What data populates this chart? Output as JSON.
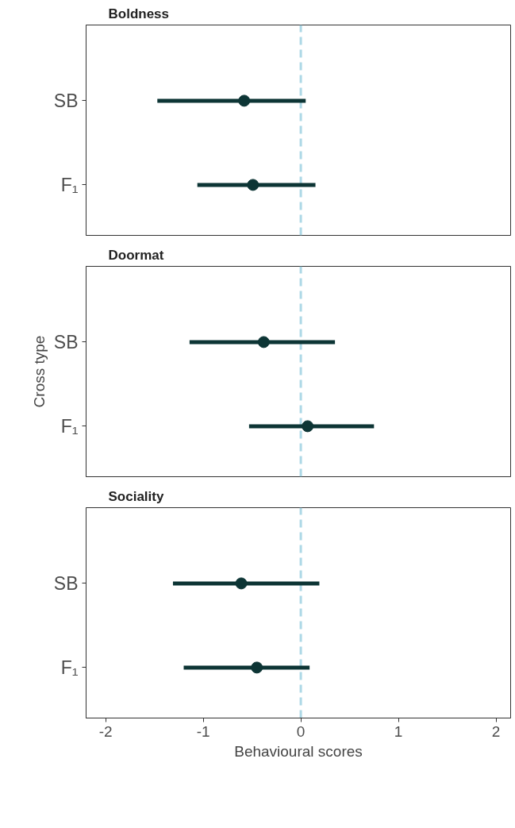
{
  "chart_data": [
    {
      "type": "scatter",
      "orientation": "horizontal",
      "title": "Boldness",
      "categories": [
        "SB",
        "F₁"
      ],
      "xlim": [
        -2.2,
        2.15
      ],
      "xticks": [
        -2,
        -1,
        0,
        1,
        2
      ],
      "tick_labels": "y",
      "marker": "circle",
      "ref_lines": [
        {
          "axis": "x",
          "value": 0,
          "color": "#add8e6",
          "line_style": "dashed"
        }
      ],
      "series": [
        {
          "color": "#0d3535",
          "values": [
            -0.58,
            -0.49
          ],
          "errors": [
            [
              -1.47,
              0.05
            ],
            [
              -1.06,
              0.15
            ]
          ]
        }
      ]
    },
    {
      "type": "scatter",
      "orientation": "horizontal",
      "title": "Doormat",
      "ylabel": "Cross type",
      "categories": [
        "SB",
        "F₁"
      ],
      "xlim": [
        -2.2,
        2.15
      ],
      "xticks": [
        -2,
        -1,
        0,
        1,
        2
      ],
      "tick_labels": "y",
      "marker": "circle",
      "ref_lines": [
        {
          "axis": "x",
          "value": 0,
          "color": "#add8e6",
          "line_style": "dashed"
        }
      ],
      "series": [
        {
          "color": "#0d3535",
          "values": [
            -0.38,
            0.07
          ],
          "errors": [
            [
              -1.14,
              0.35
            ],
            [
              -0.53,
              0.75
            ]
          ]
        }
      ]
    },
    {
      "type": "scatter",
      "orientation": "horizontal",
      "title": "Sociality",
      "xlabel": "Behavioural scores",
      "categories": [
        "SB",
        "F₁"
      ],
      "xlim": [
        -2.2,
        2.15
      ],
      "xticks": [
        -2,
        -1,
        0,
        1,
        2
      ],
      "marker": "circle",
      "ref_lines": [
        {
          "axis": "x",
          "value": 0,
          "color": "#add8e6",
          "line_style": "dashed"
        }
      ],
      "series": [
        {
          "color": "#0d3535",
          "values": [
            -0.61,
            -0.45
          ],
          "errors": [
            [
              -1.31,
              0.19
            ],
            [
              -1.2,
              0.09
            ]
          ]
        }
      ]
    }
  ]
}
